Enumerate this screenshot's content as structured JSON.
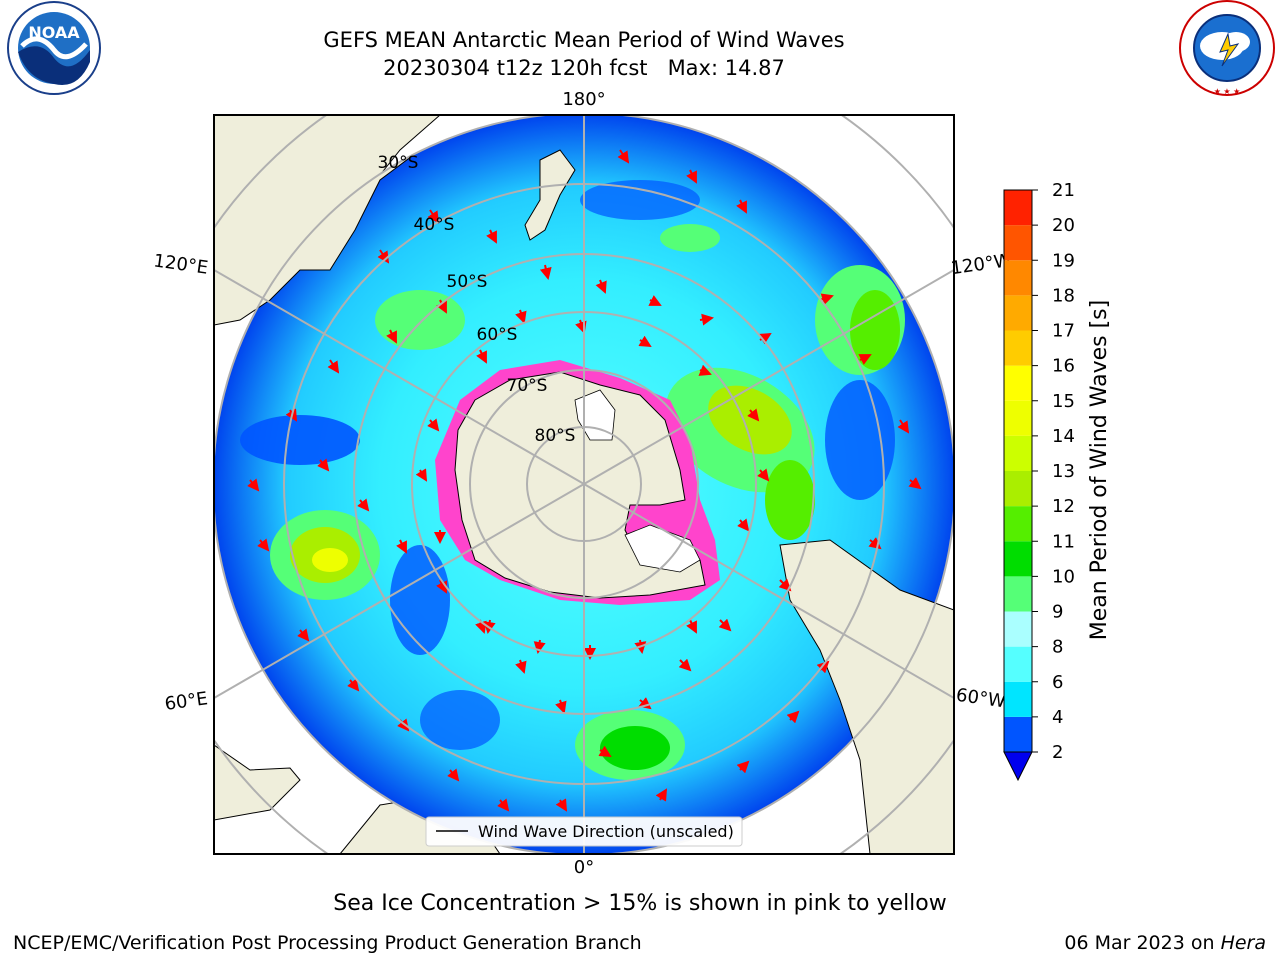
{
  "header": {
    "title_line1": "GEFS MEAN Antarctic Mean Period of Wind Waves",
    "title_line2": "20230304 t12z 120h fcst   Max: 14.87"
  },
  "logos": {
    "left": {
      "text": "NOAA",
      "ring_text": "NATIONAL OCEANIC AND ATMOSPHERIC ADMINISTRATION · U.S. DEPARTMENT OF COMMERCE"
    },
    "right": {
      "ring_text": "NATIONAL WEATHER SERVICE"
    }
  },
  "map": {
    "longitude_labels": {
      "top": "180°",
      "upper_left": "120°E",
      "upper_right": "120°W",
      "lower_left": "60°E",
      "lower_right": "60°W",
      "bottom": "0°"
    },
    "latitude_labels": [
      "30°S",
      "40°S",
      "50°S",
      "60°S",
      "70°S",
      "80°S"
    ],
    "legend": "Wind Wave Direction (unscaled)",
    "colors": {
      "land": "#efeedb",
      "sea_ice_edge": "#ff44cc",
      "arrow": "#ff0000",
      "grid": "#b0b0b0"
    }
  },
  "colorbar": {
    "label": "Mean Period of Wind Waves [s]",
    "ticks": [
      "2",
      "4",
      "6",
      "8",
      "9",
      "10",
      "11",
      "12",
      "13",
      "14",
      "15",
      "16",
      "17",
      "18",
      "19",
      "20",
      "21"
    ],
    "colors": [
      "#0055ff",
      "#00e5ff",
      "#55ffff",
      "#aaffff",
      "#55ff77",
      "#00dd00",
      "#55ee00",
      "#aaee00",
      "#ccff00",
      "#eeff00",
      "#ffff00",
      "#ffcc00",
      "#ffaa00",
      "#ff8800",
      "#ff5500",
      "#ff2200",
      "#ff0000"
    ],
    "under_color": "#0000ee",
    "extend": "min"
  },
  "footer": {
    "caption": "Sea Ice Concentration > 15% is shown in pink to yellow",
    "credit": "NCEP/EMC/Verification Post Processing Product Generation Branch",
    "date": "06 Mar 2023 on ",
    "machine": "Hera"
  }
}
